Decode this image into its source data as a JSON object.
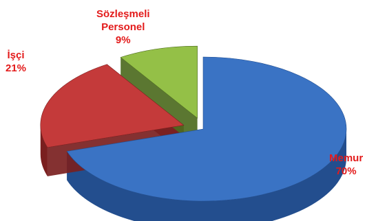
{
  "chart_data": {
    "type": "pie",
    "three_d": true,
    "exploded": true,
    "slices": [
      {
        "name": "Memur",
        "value": 70,
        "value_label": "70%",
        "color": "#3a73c4",
        "side_color": "#234e8e"
      },
      {
        "name": "İşçi",
        "value": 21,
        "value_label": "21%",
        "color": "#c43a3a",
        "side_color": "#7a1f1f"
      },
      {
        "name": "Sözleşmeli Personel",
        "value": 9,
        "value_label": "9%",
        "color": "#94c047",
        "side_color": "#4d6b1f"
      }
    ],
    "label_color": "#e31b1b",
    "legend": "none"
  },
  "labels": {
    "memur": {
      "line1": "Memur",
      "line2": "70%"
    },
    "isci": {
      "line1": "İşçi",
      "line2": "21%"
    },
    "sozlesmeli": {
      "line1": "Sözleşmeli",
      "line2": "Personel",
      "line3": "9%"
    }
  }
}
